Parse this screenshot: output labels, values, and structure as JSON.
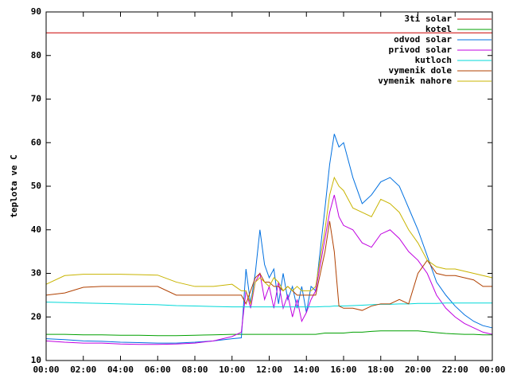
{
  "chart_data": {
    "type": "line",
    "y_label": "teplota ve C",
    "x": [
      0,
      1,
      2,
      3,
      4,
      5,
      6,
      7,
      8,
      9,
      10,
      10.5,
      10.75,
      11,
      11.25,
      11.5,
      11.75,
      12,
      12.25,
      12.5,
      12.75,
      13,
      13.25,
      13.5,
      13.75,
      14,
      14.25,
      14.5,
      15,
      15.25,
      15.5,
      15.75,
      16,
      16.5,
      17,
      17.5,
      18,
      18.5,
      19,
      19.5,
      20,
      20.5,
      21,
      21.5,
      22,
      22.5,
      23,
      23.5,
      24
    ],
    "xlim": [
      0,
      24
    ],
    "xticks": [
      {
        "value": 0,
        "label": "00:00"
      },
      {
        "value": 2,
        "label": "02:00"
      },
      {
        "value": 4,
        "label": "04:00"
      },
      {
        "value": 6,
        "label": "06:00"
      },
      {
        "value": 8,
        "label": "08:00"
      },
      {
        "value": 10,
        "label": "10:00"
      },
      {
        "value": 12,
        "label": "12:00"
      },
      {
        "value": 14,
        "label": "14:00"
      },
      {
        "value": 16,
        "label": "16:00"
      },
      {
        "value": 18,
        "label": "18:00"
      },
      {
        "value": 20,
        "label": "20:00"
      },
      {
        "value": 22,
        "label": "22:00"
      },
      {
        "value": 24,
        "label": "00:00"
      }
    ],
    "ylim": [
      10,
      90
    ],
    "yticks": [
      10,
      20,
      30,
      40,
      50,
      60,
      70,
      80,
      90
    ],
    "grid": false,
    "legend": "top-right",
    "series": [
      {
        "name": "3ti solar",
        "color": "#cc0000",
        "values": [
          85.2,
          85.2,
          85.2,
          85.2,
          85.2,
          85.2,
          85.2,
          85.2,
          85.2,
          85.2,
          85.2,
          85.2,
          85.2,
          85.2,
          85.2,
          85.2,
          85.2,
          85.2,
          85.2,
          85.2,
          85.2,
          85.2,
          85.2,
          85.2,
          85.2,
          85.2,
          85.2,
          85.2,
          85.2,
          85.2,
          85.2,
          85.2,
          85.2,
          85.2,
          85.2,
          85.2,
          85.2,
          85.2,
          85.2,
          85.2,
          85.2,
          85.2,
          85.2,
          85.2,
          85.2,
          85.2,
          85.2,
          85.2,
          85.2
        ]
      },
      {
        "name": "kotel",
        "color": "#00a000",
        "values": [
          16,
          16,
          15.9,
          15.9,
          15.8,
          15.8,
          15.7,
          15.7,
          15.8,
          15.9,
          16,
          16,
          16,
          16,
          16,
          16,
          16,
          16,
          16,
          16,
          16,
          16,
          16,
          16,
          16,
          16,
          16,
          16,
          16.3,
          16.3,
          16.3,
          16.3,
          16.3,
          16.5,
          16.5,
          16.7,
          16.8,
          16.8,
          16.8,
          16.8,
          16.8,
          16.6,
          16.4,
          16.2,
          16.1,
          16,
          16,
          15.9,
          15.9
        ]
      },
      {
        "name": "odvod solar",
        "color": "#0070e0",
        "values": [
          15,
          14.8,
          14.5,
          14.4,
          14.2,
          14.1,
          14,
          14,
          14.2,
          14.5,
          15,
          15.2,
          31,
          23,
          30,
          40,
          32,
          29,
          31,
          23,
          30,
          24,
          27,
          22,
          27,
          21,
          27,
          26,
          45,
          55,
          62,
          59,
          60,
          52,
          46,
          48,
          51,
          52,
          50,
          45,
          40,
          34,
          28,
          25,
          22.5,
          20.5,
          19,
          18,
          17.5
        ]
      },
      {
        "name": "privod solar",
        "color": "#c000e0",
        "values": [
          14.5,
          14.2,
          14,
          14,
          13.8,
          13.7,
          13.7,
          13.8,
          14,
          14.5,
          15.5,
          16.5,
          26,
          22,
          28,
          30,
          24,
          27,
          22,
          28,
          22,
          25,
          20,
          24,
          19,
          21,
          24,
          26,
          38,
          44,
          48,
          43,
          41,
          40,
          37,
          36,
          39,
          40,
          38,
          35,
          33,
          30,
          25,
          22,
          20,
          18.5,
          17.5,
          16.5,
          16
        ]
      },
      {
        "name": "kutloch",
        "color": "#00d8d8",
        "values": [
          23.4,
          23.3,
          23.2,
          23.1,
          23,
          22.9,
          22.8,
          22.6,
          22.5,
          22.4,
          22.3,
          22.3,
          22.3,
          22.3,
          22.3,
          22.3,
          22.3,
          22.3,
          22.3,
          22.3,
          22.3,
          22.3,
          22.3,
          22.3,
          22.3,
          22.3,
          22.3,
          22.3,
          22.4,
          22.4,
          22.5,
          22.5,
          22.5,
          22.6,
          22.7,
          22.8,
          22.9,
          22.9,
          23,
          23,
          23.1,
          23.1,
          23.1,
          23.2,
          23.2,
          23.2,
          23.2,
          23.2,
          23.2
        ]
      },
      {
        "name": "vymenik dole",
        "color": "#b04000",
        "values": [
          25,
          25.5,
          26.8,
          27,
          27,
          27,
          27,
          25,
          25,
          25,
          25,
          25,
          23,
          26,
          29,
          30,
          28,
          28,
          27,
          27,
          26,
          27,
          26,
          25,
          25,
          25,
          25,
          25,
          35,
          42,
          35,
          22.5,
          22,
          22,
          21.5,
          22.5,
          23,
          23,
          24,
          23,
          30,
          33,
          30,
          29.5,
          29.5,
          29,
          28.5,
          27,
          27
        ]
      },
      {
        "name": "vymenik nahore",
        "color": "#c8b400",
        "values": [
          27.5,
          29.5,
          29.8,
          29.8,
          29.8,
          29.7,
          29.6,
          28,
          27,
          27,
          27.5,
          26,
          26,
          23,
          28,
          29,
          28,
          27,
          29,
          28,
          26,
          27,
          26,
          27,
          26,
          26,
          26,
          27,
          40,
          48,
          52,
          50,
          49,
          45,
          44,
          43,
          47,
          46,
          44,
          40,
          37,
          33,
          31.5,
          31,
          31,
          30.5,
          30,
          29.5,
          29
        ]
      }
    ]
  }
}
